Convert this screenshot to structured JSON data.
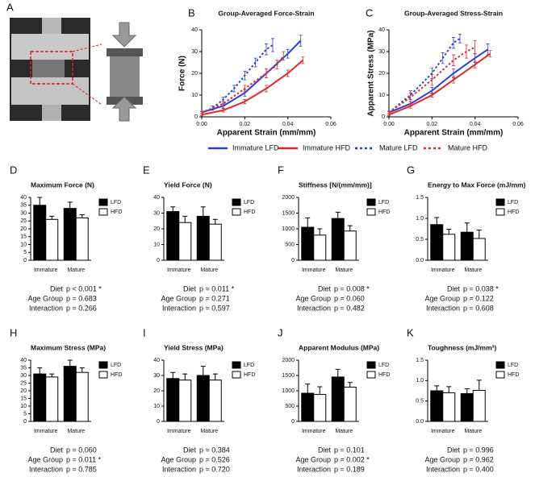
{
  "photo_panel": {
    "label": "A"
  },
  "chart_data": [
    {
      "type": "line",
      "label": "B",
      "title": "Group-Averaged Force-Strain",
      "x_label": "Apparent Strain (mm/mm)",
      "y_label": "Force (N)",
      "xlim": [
        0,
        0.06
      ],
      "xticks": [
        {
          "value": 0,
          "label": "0.00"
        },
        0.02,
        0.04,
        0.06
      ],
      "ylim": [
        0,
        40
      ],
      "yticks": [
        0,
        10,
        20,
        30,
        40
      ],
      "series": [
        {
          "name": "Immature LFD",
          "color": "#2b3fd6",
          "dash": false,
          "x": [
            0,
            0.01,
            0.02,
            0.03,
            0.04,
            0.046
          ],
          "values": [
            2,
            5,
            11,
            20,
            29,
            35
          ],
          "errors": [
            0.5,
            1,
            1.5,
            2,
            2,
            2.5
          ]
        },
        {
          "name": "Immature HFD",
          "color": "#e0282b",
          "dash": false,
          "x": [
            0,
            0.01,
            0.02,
            0.03,
            0.04,
            0.047
          ],
          "values": [
            1,
            3,
            7,
            13,
            20,
            26
          ],
          "errors": [
            0.5,
            0.8,
            1,
            1.5,
            1.5,
            1.5
          ]
        },
        {
          "name": "Mature LFD",
          "color": "#2b3fd6",
          "dash": true,
          "x": [
            0,
            0.005,
            0.01,
            0.015,
            0.02,
            0.025,
            0.03,
            0.033
          ],
          "values": [
            2,
            4,
            8,
            13,
            19,
            25,
            31,
            33
          ],
          "errors": [
            0.5,
            1,
            1,
            1.5,
            2,
            2,
            2.5,
            3
          ]
        },
        {
          "name": "Mature HFD",
          "color": "#e0282b",
          "dash": true,
          "x": [
            0,
            0.01,
            0.02,
            0.03,
            0.035,
            0.038
          ],
          "values": [
            2,
            6,
            13,
            20,
            24,
            28
          ],
          "errors": [
            0.5,
            1,
            1.5,
            2,
            2,
            2
          ]
        }
      ]
    },
    {
      "type": "line",
      "label": "C",
      "title": "Group-Averaged Stress-Strain",
      "x_label": "Apparent Strain (mm/mm)",
      "y_label": "Apparent Stress (MPa)",
      "xlim": [
        0,
        0.06
      ],
      "xticks": [
        {
          "value": 0,
          "label": "0.00"
        },
        0.02,
        0.04,
        0.06
      ],
      "ylim": [
        0,
        40
      ],
      "yticks": [
        0,
        10,
        20,
        30,
        40
      ],
      "series": [
        {
          "color": "#2b3fd6",
          "dash": false,
          "x": [
            0,
            0.01,
            0.02,
            0.03,
            0.04,
            0.046
          ],
          "values": [
            2,
            6,
            12,
            20,
            27,
            31
          ],
          "errors": [
            0.5,
            1,
            1.5,
            2,
            2,
            2.5
          ]
        },
        {
          "color": "#e0282b",
          "dash": false,
          "x": [
            0,
            0.01,
            0.02,
            0.03,
            0.04,
            0.047
          ],
          "values": [
            1,
            5,
            10,
            17,
            24,
            29
          ],
          "errors": [
            0.5,
            1,
            1,
            1.5,
            1.5,
            1.5
          ]
        },
        {
          "color": "#2b3fd6",
          "dash": true,
          "x": [
            0,
            0.01,
            0.02,
            0.025,
            0.03,
            0.033
          ],
          "values": [
            2,
            10,
            20,
            27,
            34,
            36
          ],
          "errors": [
            0.5,
            2,
            2.5,
            2.5,
            2.5,
            2
          ]
        },
        {
          "color": "#e0282b",
          "dash": true,
          "x": [
            0,
            0.01,
            0.02,
            0.03,
            0.036,
            0.04
          ],
          "values": [
            2,
            9,
            17,
            26,
            30,
            32
          ],
          "errors": [
            0.5,
            2,
            2.5,
            2.5,
            3,
            3
          ]
        }
      ]
    },
    {
      "type": "bar",
      "label": "D",
      "title": "Maximum  Force (N)",
      "categories": [
        "Immature",
        "Mature"
      ],
      "ylim": [
        0,
        40
      ],
      "yticks": [
        0,
        5,
        10,
        15,
        20,
        25,
        30,
        35,
        40
      ],
      "series": [
        {
          "name": "LFD",
          "color": "#000000",
          "values": [
            35,
            33
          ],
          "errors": [
            5,
            4
          ]
        },
        {
          "name": "HFD",
          "color": "#ffffff",
          "values": [
            26,
            27
          ],
          "errors": [
            2,
            2
          ]
        }
      ],
      "stats": [
        {
          "label": "Diet",
          "text": "p < 0.001 *"
        },
        {
          "label": "Age Group",
          "text": "p = 0.683"
        },
        {
          "label": "Interaction",
          "text": "p = 0.266"
        }
      ]
    },
    {
      "type": "bar",
      "label": "E",
      "title": "Yield  Force (N)",
      "categories": [
        "Immature",
        "Mature"
      ],
      "ylim": [
        0,
        40
      ],
      "yticks": [
        0,
        10,
        20,
        30,
        40
      ],
      "series": [
        {
          "name": "LFD",
          "color": "#000000",
          "values": [
            31,
            28
          ],
          "errors": [
            3,
            6
          ]
        },
        {
          "name": "HFD",
          "color": "#ffffff",
          "values": [
            24,
            23
          ],
          "errors": [
            4,
            3
          ]
        }
      ],
      "stats": [
        {
          "label": "Diet",
          "text": "p = 0.011 *"
        },
        {
          "label": "Age Group",
          "text": "p = 0.271"
        },
        {
          "label": "Interaction",
          "text": "p = 0.597"
        }
      ]
    },
    {
      "type": "bar",
      "label": "F",
      "title": "Stiffness [N/(mm/mm)]",
      "categories": [
        "Immature",
        "Mature"
      ],
      "ylim": [
        0,
        2000
      ],
      "yticks": [
        0,
        500,
        1000,
        1500,
        2000
      ],
      "series": [
        {
          "name": "LFD",
          "color": "#000000",
          "values": [
            1050,
            1330
          ],
          "errors": [
            300,
            200
          ]
        },
        {
          "name": "HFD",
          "color": "#ffffff",
          "values": [
            800,
            930
          ],
          "errors": [
            200,
            170
          ]
        }
      ],
      "stats": [
        {
          "label": "Diet",
          "text": "p = 0.008 *"
        },
        {
          "label": "Age Group",
          "text": "p = 0.060"
        },
        {
          "label": "Interaction",
          "text": "p = 0.482"
        }
      ]
    },
    {
      "type": "bar",
      "label": "G",
      "title": "Energy to Max Force (mJ/mm)",
      "categories": [
        "Immature",
        "Mature"
      ],
      "ylim": [
        0,
        1.5
      ],
      "yticks": [
        {
          "value": 0,
          "label": "0.0"
        },
        0.5,
        {
          "value": 1,
          "label": "1.0"
        },
        1.5
      ],
      "series": [
        {
          "name": "LFD",
          "color": "#000000",
          "values": [
            0.85,
            0.67
          ],
          "errors": [
            0.17,
            0.22
          ]
        },
        {
          "name": "HFD",
          "color": "#ffffff",
          "values": [
            0.62,
            0.52
          ],
          "errors": [
            0.12,
            0.2
          ]
        }
      ],
      "stats": [
        {
          "label": "Diet",
          "text": "p = 0.038 *"
        },
        {
          "label": "Age Group",
          "text": "p = 0.122"
        },
        {
          "label": "Interaction",
          "text": "p = 0.608"
        }
      ]
    },
    {
      "type": "bar",
      "label": "H",
      "title": "Maximum Stress (MPa)",
      "categories": [
        "Immature",
        "Mature"
      ],
      "ylim": [
        0,
        40
      ],
      "yticks": [
        0,
        5,
        10,
        15,
        20,
        25,
        30,
        35,
        40
      ],
      "series": [
        {
          "name": "LFD",
          "color": "#000000",
          "values": [
            31,
            36
          ],
          "errors": [
            4,
            4
          ]
        },
        {
          "name": "HFD",
          "color": "#ffffff",
          "values": [
            29,
            32
          ],
          "errors": [
            2,
            3
          ]
        }
      ],
      "stats": [
        {
          "label": "Diet",
          "text": "p = 0.060"
        },
        {
          "label": "Age Group",
          "text": "p = 0.011 *"
        },
        {
          "label": "Interaction",
          "text": "p = 0.785"
        }
      ]
    },
    {
      "type": "bar",
      "label": "I",
      "title": "Yield Stress (MPa)",
      "categories": [
        "Immature",
        "Mature"
      ],
      "ylim": [
        0,
        40
      ],
      "yticks": [
        0,
        10,
        20,
        30,
        40
      ],
      "series": [
        {
          "name": "LFD",
          "color": "#000000",
          "values": [
            28,
            30
          ],
          "errors": [
            4,
            6
          ]
        },
        {
          "name": "HFD",
          "color": "#ffffff",
          "values": [
            27,
            27
          ],
          "errors": [
            4,
            4
          ]
        }
      ],
      "stats": [
        {
          "label": "Diet",
          "text": "p = 0.384"
        },
        {
          "label": "Age Group",
          "text": "p = 0.526"
        },
        {
          "label": "Interaction",
          "text": "p = 0.720"
        }
      ]
    },
    {
      "type": "bar",
      "label": "J",
      "title": "Apparent Modulus (MPa)",
      "categories": [
        "Immature",
        "Mature"
      ],
      "ylim": [
        0,
        2000
      ],
      "yticks": [
        0,
        500,
        1000,
        1500,
        2000
      ],
      "series": [
        {
          "name": "LFD",
          "color": "#000000",
          "values": [
            920,
            1450
          ],
          "errors": [
            300,
            250
          ]
        },
        {
          "name": "HFD",
          "color": "#ffffff",
          "values": [
            880,
            1120
          ],
          "errors": [
            250,
            150
          ]
        }
      ],
      "stats": [
        {
          "label": "Diet",
          "text": "p = 0.101"
        },
        {
          "label": "Age Group",
          "text": "p = 0.002 *"
        },
        {
          "label": "Interaction",
          "text": "p = 0.189"
        }
      ]
    },
    {
      "type": "bar",
      "label": "K",
      "title": "Toughness (mJ/mm³)",
      "categories": [
        "Immature",
        "Mature"
      ],
      "ylim": [
        0,
        1.5
      ],
      "yticks": [
        {
          "value": 0,
          "label": "0.0"
        },
        0.5,
        {
          "value": 1,
          "label": "1.0"
        },
        1.5
      ],
      "series": [
        {
          "name": "LFD",
          "color": "#000000",
          "values": [
            0.75,
            0.68
          ],
          "errors": [
            0.12,
            0.12
          ]
        },
        {
          "name": "HFD",
          "color": "#ffffff",
          "values": [
            0.7,
            0.76
          ],
          "errors": [
            0.15,
            0.25
          ]
        }
      ],
      "stats": [
        {
          "label": "Diet",
          "text": "p = 0.996"
        },
        {
          "label": "Age Group",
          "text": "p = 0.962"
        },
        {
          "label": "Interaction",
          "text": "p = 0.400"
        }
      ]
    }
  ]
}
